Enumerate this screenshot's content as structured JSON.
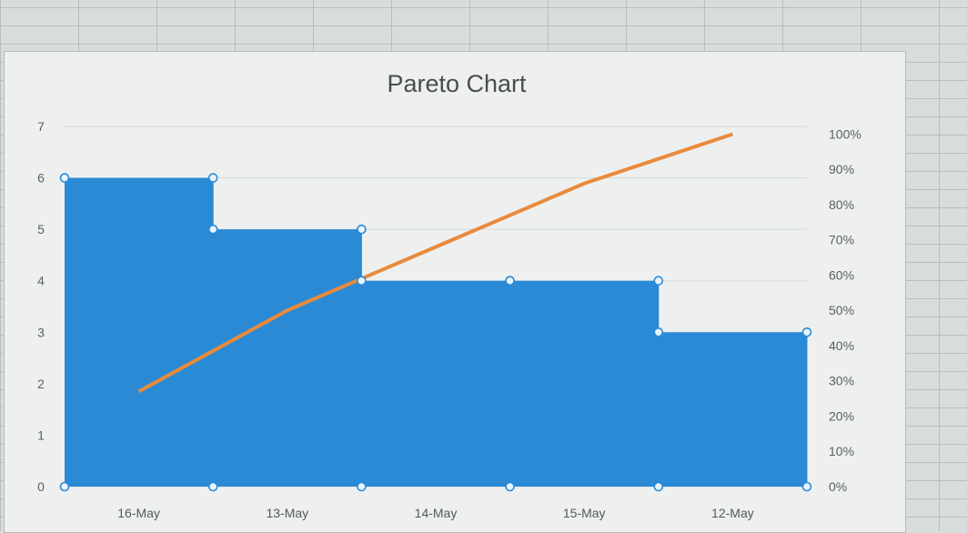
{
  "chart_data": {
    "type": "bar",
    "title": "Pareto Chart",
    "categories": [
      "16-May",
      "13-May",
      "14-May",
      "15-May",
      "12-May"
    ],
    "series": [
      {
        "kind": "bar",
        "values": [
          6,
          5,
          4,
          4,
          3
        ],
        "color": "#2a8ad6"
      },
      {
        "kind": "line",
        "values": [
          0.27,
          0.5,
          0.68,
          0.86,
          1.0
        ],
        "color": "#e98a3c"
      }
    ],
    "ylim": [
      0,
      7
    ],
    "y_ticks": [
      "0",
      "1",
      "2",
      "3",
      "4",
      "5",
      "6",
      "7"
    ],
    "y2lim": [
      0,
      1
    ],
    "y2_ticks": [
      "0%",
      "10%",
      "20%",
      "30%",
      "40%",
      "50%",
      "60%",
      "70%",
      "80%",
      "90%",
      "100%"
    ],
    "grid": true
  }
}
